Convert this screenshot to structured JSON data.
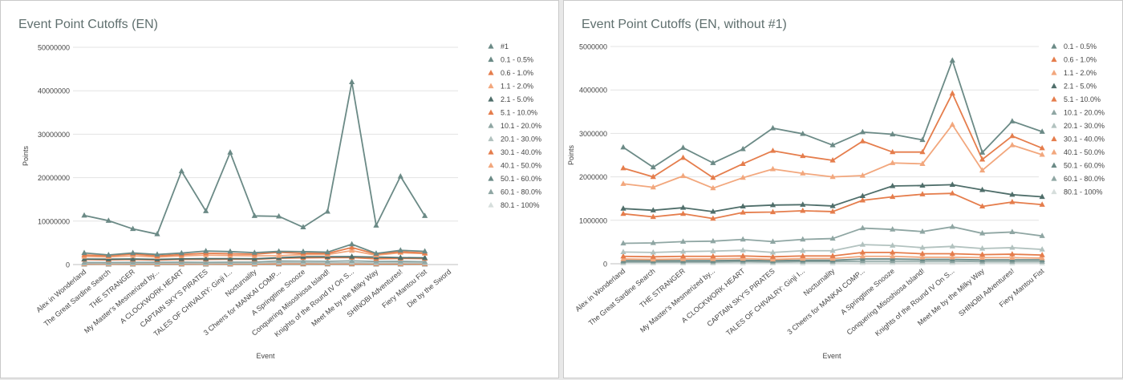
{
  "colors": {
    "gray_dark": "#6b8a86",
    "orange": "#e57d4c",
    "orange_light": "#f2a77d",
    "gray_mid": "#8fa6a3",
    "gray_light": "#b2c2bf",
    "gray_faint": "#d6dedc"
  },
  "chart_data": [
    {
      "type": "line",
      "title": "Event Point Cutoffs (EN)",
      "xlabel": "Event",
      "ylabel": "Points",
      "ylim": [
        0,
        50000000
      ],
      "yticks": [
        "0",
        "10000000",
        "20000000",
        "30000000",
        "40000000",
        "50000000"
      ],
      "grid": true,
      "legend_position": "right",
      "categories": [
        "Alex in Wonderland",
        "The Great Sardine Search",
        "THE STRANGER",
        "My Master's Mesmerized by...",
        "A CLOCKWORK HEART",
        "CAPTAIN SKY'S PIRATES",
        "TALES OF CHIVALRY: Ginji I...",
        "Nocturnality",
        "3 Cheers for MANKAI COMP...",
        "A Springtime Snooze",
        "Conquering Misoshiosa Island!",
        "Knights of the Round IV On S...",
        "Meet Me by the Milky Way",
        "SHINOBI Adventures!",
        "Fiery Mantou Fist",
        "Die by the Sword"
      ],
      "series": [
        {
          "name": "#1",
          "color": "#6b8a86",
          "marker": "triangle",
          "values": [
            11300000,
            10100000,
            8200000,
            7000000,
            21500000,
            12300000,
            25800000,
            11200000,
            11100000,
            8600000,
            12200000,
            42000000,
            9000000,
            20300000,
            11200000,
            null
          ]
        },
        {
          "name": "0.1 - 0.5%",
          "color": "#6b8a86",
          "marker": "triangle",
          "values": [
            2680000,
            2220000,
            2670000,
            2320000,
            2640000,
            3120000,
            2990000,
            2730000,
            3030000,
            2980000,
            2850000,
            4680000,
            2560000,
            3280000,
            3040000,
            null
          ]
        },
        {
          "name": "0.6 - 1.0%",
          "color": "#e57d4c",
          "marker": "triangle",
          "values": [
            2200000,
            2000000,
            2440000,
            1980000,
            2300000,
            2600000,
            2480000,
            2380000,
            2820000,
            2570000,
            2570000,
            3920000,
            2400000,
            2940000,
            2660000,
            null
          ]
        },
        {
          "name": "1.1 - 2.0%",
          "color": "#f2a77d",
          "marker": "triangle",
          "values": [
            1840000,
            1760000,
            2020000,
            1740000,
            1980000,
            2180000,
            2080000,
            2000000,
            2030000,
            2320000,
            2300000,
            3200000,
            2150000,
            2730000,
            2510000,
            null
          ]
        },
        {
          "name": "2.1 - 5.0%",
          "color": "#4f6e6a",
          "marker": "triangle",
          "values": [
            1270000,
            1230000,
            1290000,
            1200000,
            1320000,
            1350000,
            1360000,
            1330000,
            1560000,
            1790000,
            1800000,
            1820000,
            1700000,
            1590000,
            1540000,
            null
          ]
        },
        {
          "name": "5.1 - 10.0%",
          "color": "#e57d4c",
          "marker": "triangle",
          "values": [
            1150000,
            1080000,
            1150000,
            1040000,
            1180000,
            1190000,
            1220000,
            1200000,
            1460000,
            1540000,
            1600000,
            1620000,
            1320000,
            1420000,
            1360000,
            null
          ]
        },
        {
          "name": "10.1 - 20.0%",
          "color": "#8fa6a3",
          "marker": "triangle",
          "values": [
            470000,
            480000,
            510000,
            520000,
            560000,
            510000,
            560000,
            580000,
            820000,
            790000,
            740000,
            850000,
            700000,
            730000,
            640000,
            null
          ]
        },
        {
          "name": "20.1 - 30.0%",
          "color": "#b2c2bf",
          "marker": "triangle",
          "values": [
            270000,
            260000,
            280000,
            290000,
            310000,
            260000,
            300000,
            300000,
            440000,
            420000,
            370000,
            400000,
            350000,
            370000,
            330000,
            null
          ]
        },
        {
          "name": "30.1 - 40.0%",
          "color": "#e57d4c",
          "marker": "triangle",
          "values": [
            170000,
            160000,
            170000,
            170000,
            180000,
            160000,
            180000,
            180000,
            260000,
            260000,
            230000,
            230000,
            210000,
            220000,
            200000,
            null
          ]
        },
        {
          "name": "40.1 - 50.0%",
          "color": "#f2a77d",
          "marker": "triangle",
          "values": [
            110000,
            100000,
            110000,
            110000,
            120000,
            100000,
            120000,
            120000,
            170000,
            170000,
            150000,
            150000,
            140000,
            140000,
            130000,
            null
          ]
        },
        {
          "name": "50.1 - 60.0%",
          "color": "#6b8a86",
          "marker": "triangle",
          "values": [
            70000,
            70000,
            70000,
            70000,
            80000,
            70000,
            80000,
            80000,
            110000,
            110000,
            100000,
            100000,
            90000,
            90000,
            90000,
            null
          ]
        },
        {
          "name": "60.1 - 80.0%",
          "color": "#8fa6a3",
          "marker": "triangle",
          "values": [
            40000,
            40000,
            40000,
            40000,
            50000,
            40000,
            50000,
            50000,
            60000,
            60000,
            60000,
            60000,
            50000,
            50000,
            50000,
            null
          ]
        },
        {
          "name": "80.1 - 100%",
          "color": "#d6dedc",
          "marker": "triangle",
          "values": [
            10000,
            10000,
            10000,
            10000,
            10000,
            10000,
            10000,
            10000,
            20000,
            20000,
            20000,
            20000,
            10000,
            10000,
            10000,
            null
          ]
        }
      ]
    },
    {
      "type": "line",
      "title": "Event Point Cutoffs (EN, without #1)",
      "xlabel": "Event",
      "ylabel": "Points",
      "ylim": [
        0,
        5000000
      ],
      "yticks": [
        "0",
        "1000000",
        "2000000",
        "3000000",
        "4000000",
        "5000000"
      ],
      "grid": true,
      "legend_position": "right",
      "categories": [
        "Alex in Wonderland",
        "The Great Sardine Search",
        "THE STRANGER",
        "My Master's Mesmerized by...",
        "A CLOCKWORK HEART",
        "CAPTAIN SKY'S PIRATES",
        "TALES OF CHIVALRY: Ginji I...",
        "Nocturnality",
        "3 Cheers for MANKAI COMP...",
        "A Springtime Snooze",
        "Conquering Misoshiosa Island!",
        "Knights of the Round IV On S...",
        "Meet Me by the Milky Way",
        "SHINOBI Adventures!",
        "Fiery Mantou Fist"
      ],
      "series": [
        {
          "name": "0.1 - 0.5%",
          "color": "#6b8a86",
          "marker": "triangle",
          "values": [
            2680000,
            2220000,
            2670000,
            2320000,
            2640000,
            3120000,
            2990000,
            2730000,
            3030000,
            2980000,
            2850000,
            4680000,
            2560000,
            3280000,
            3040000
          ]
        },
        {
          "name": "0.6 - 1.0%",
          "color": "#e57d4c",
          "marker": "triangle",
          "values": [
            2200000,
            2000000,
            2440000,
            1980000,
            2300000,
            2600000,
            2480000,
            2380000,
            2820000,
            2570000,
            2570000,
            3920000,
            2400000,
            2940000,
            2660000
          ]
        },
        {
          "name": "1.1 - 2.0%",
          "color": "#f2a77d",
          "marker": "triangle",
          "values": [
            1840000,
            1760000,
            2020000,
            1740000,
            1980000,
            2180000,
            2080000,
            2000000,
            2030000,
            2320000,
            2300000,
            3200000,
            2150000,
            2730000,
            2510000
          ]
        },
        {
          "name": "2.1 - 5.0%",
          "color": "#4f6e6a",
          "marker": "triangle",
          "values": [
            1270000,
            1230000,
            1290000,
            1200000,
            1320000,
            1350000,
            1360000,
            1330000,
            1560000,
            1790000,
            1800000,
            1820000,
            1700000,
            1590000,
            1540000
          ]
        },
        {
          "name": "5.1 - 10.0%",
          "color": "#e57d4c",
          "marker": "triangle",
          "values": [
            1150000,
            1080000,
            1150000,
            1040000,
            1180000,
            1190000,
            1220000,
            1200000,
            1460000,
            1540000,
            1600000,
            1620000,
            1320000,
            1420000,
            1360000
          ]
        },
        {
          "name": "10.1 - 20.0%",
          "color": "#8fa6a3",
          "marker": "triangle",
          "values": [
            470000,
            480000,
            510000,
            520000,
            560000,
            510000,
            560000,
            580000,
            820000,
            790000,
            740000,
            850000,
            700000,
            730000,
            640000
          ]
        },
        {
          "name": "20.1 - 30.0%",
          "color": "#b2c2bf",
          "marker": "triangle",
          "values": [
            270000,
            260000,
            280000,
            290000,
            310000,
            260000,
            300000,
            300000,
            440000,
            420000,
            370000,
            400000,
            350000,
            370000,
            330000
          ]
        },
        {
          "name": "30.1 - 40.0%",
          "color": "#e57d4c",
          "marker": "triangle",
          "values": [
            170000,
            160000,
            170000,
            170000,
            180000,
            160000,
            180000,
            180000,
            260000,
            260000,
            230000,
            230000,
            210000,
            220000,
            200000
          ]
        },
        {
          "name": "40.1 - 50.0%",
          "color": "#f2a77d",
          "marker": "triangle",
          "values": [
            110000,
            100000,
            110000,
            110000,
            120000,
            100000,
            120000,
            120000,
            170000,
            170000,
            150000,
            150000,
            140000,
            140000,
            130000
          ]
        },
        {
          "name": "50.1 - 60.0%",
          "color": "#6b8a86",
          "marker": "triangle",
          "values": [
            70000,
            70000,
            70000,
            70000,
            80000,
            70000,
            80000,
            80000,
            110000,
            110000,
            100000,
            100000,
            90000,
            90000,
            90000
          ]
        },
        {
          "name": "60.1 - 80.0%",
          "color": "#8fa6a3",
          "marker": "triangle",
          "values": [
            40000,
            40000,
            40000,
            40000,
            50000,
            40000,
            50000,
            50000,
            60000,
            60000,
            60000,
            60000,
            50000,
            50000,
            50000
          ]
        },
        {
          "name": "80.1 - 100%",
          "color": "#d6dedc",
          "marker": "triangle",
          "values": [
            10000,
            10000,
            10000,
            10000,
            10000,
            10000,
            10000,
            10000,
            20000,
            20000,
            20000,
            20000,
            10000,
            10000,
            10000
          ]
        }
      ]
    }
  ]
}
